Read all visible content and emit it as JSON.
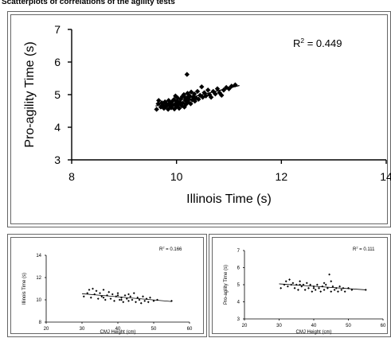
{
  "caption": "Scatterplots of correlations of the agility tests",
  "chart_data": [
    {
      "type": "scatter",
      "title": "",
      "xlabel": "Illinois Time (s)",
      "ylabel": "Pro-agility Time (s)",
      "xlim": [
        8,
        14
      ],
      "ylim": [
        3,
        7
      ],
      "xticks": [
        "8",
        "10",
        "12",
        "14"
      ],
      "yticks": [
        "3",
        "4",
        "5",
        "6",
        "7"
      ],
      "annotation": "R",
      "annotation_sup": "2",
      "annotation_value": " = 0.449",
      "trendline": {
        "x": [
          9.6,
          11.2
        ],
        "y": [
          4.65,
          5.28
        ]
      },
      "points": [
        [
          9.62,
          4.55
        ],
        [
          9.65,
          4.72
        ],
        [
          9.66,
          4.82
        ],
        [
          9.7,
          4.62
        ],
        [
          9.72,
          4.75
        ],
        [
          9.74,
          4.68
        ],
        [
          9.76,
          4.58
        ],
        [
          9.78,
          4.78
        ],
        [
          9.8,
          4.64
        ],
        [
          9.82,
          4.7
        ],
        [
          9.84,
          4.55
        ],
        [
          9.85,
          4.82
        ],
        [
          9.87,
          4.66
        ],
        [
          9.88,
          4.74
        ],
        [
          9.9,
          4.6
        ],
        [
          9.91,
          4.78
        ],
        [
          9.93,
          4.68
        ],
        [
          9.95,
          4.85
        ],
        [
          9.96,
          4.56
        ],
        [
          9.98,
          4.72
        ],
        [
          10.0,
          4.64
        ],
        [
          10.01,
          4.8
        ],
        [
          10.02,
          4.9
        ],
        [
          10.04,
          4.7
        ],
        [
          10.05,
          4.58
        ],
        [
          10.07,
          4.76
        ],
        [
          10.08,
          4.86
        ],
        [
          10.1,
          4.66
        ],
        [
          10.11,
          4.94
        ],
        [
          10.12,
          4.74
        ],
        [
          10.14,
          5.0
        ],
        [
          10.15,
          4.62
        ],
        [
          10.17,
          4.82
        ],
        [
          10.18,
          4.7
        ],
        [
          10.2,
          4.9
        ],
        [
          10.21,
          5.04
        ],
        [
          10.22,
          4.78
        ],
        [
          10.24,
          4.86
        ],
        [
          10.25,
          4.96
        ],
        [
          10.27,
          4.72
        ],
        [
          10.28,
          5.08
        ],
        [
          10.3,
          4.84
        ],
        [
          10.32,
          4.94
        ],
        [
          10.34,
          5.02
        ],
        [
          10.35,
          4.8
        ],
        [
          10.37,
          4.9
        ],
        [
          10.4,
          5.1
        ],
        [
          10.42,
          4.86
        ],
        [
          10.45,
          4.98
        ],
        [
          10.48,
          5.24
        ],
        [
          10.5,
          4.92
        ],
        [
          10.53,
          5.06
        ],
        [
          10.56,
          4.96
        ],
        [
          10.6,
          5.14
        ],
        [
          10.63,
          5.0
        ],
        [
          10.66,
          4.92
        ],
        [
          10.7,
          5.1
        ],
        [
          10.74,
          5.02
        ],
        [
          10.78,
          5.18
        ],
        [
          10.82,
          5.06
        ],
        [
          10.86,
          4.98
        ],
        [
          10.9,
          5.14
        ],
        [
          10.95,
          5.22
        ],
        [
          11.0,
          5.18
        ],
        [
          11.05,
          5.26
        ],
        [
          11.12,
          5.3
        ],
        [
          10.2,
          5.62
        ],
        [
          9.98,
          4.96
        ],
        [
          10.16,
          4.92
        ],
        [
          10.36,
          4.88
        ]
      ]
    },
    {
      "type": "scatter",
      "title": "",
      "xlabel": "CMJ Height (cm)",
      "ylabel": "Illinois Time (s)",
      "xlim": [
        20,
        60
      ],
      "ylim": [
        8,
        14
      ],
      "xticks": [
        "20",
        "30",
        "40",
        "50",
        "60"
      ],
      "yticks": [
        "8",
        "10",
        "12",
        "14"
      ],
      "annotation": "R",
      "annotation_sup": "2",
      "annotation_value": " = 0.166",
      "trendline": {
        "x": [
          30,
          55
        ],
        "y": [
          10.55,
          9.85
        ]
      },
      "points": [
        [
          30.5,
          10.3
        ],
        [
          31.5,
          10.6
        ],
        [
          32,
          10.9
        ],
        [
          32.5,
          10.2
        ],
        [
          33,
          11.0
        ],
        [
          33.5,
          10.5
        ],
        [
          34,
          10.8
        ],
        [
          34.5,
          10.1
        ],
        [
          35,
          10.6
        ],
        [
          35.5,
          10.3
        ],
        [
          36,
          10.9
        ],
        [
          36.5,
          10.0
        ],
        [
          37,
          10.4
        ],
        [
          37.5,
          10.7
        ],
        [
          38,
          10.1
        ],
        [
          38.5,
          10.5
        ],
        [
          39,
          9.9
        ],
        [
          39.5,
          10.3
        ],
        [
          40,
          10.6
        ],
        [
          40.5,
          10.0
        ],
        [
          41,
          10.2
        ],
        [
          41.5,
          9.8
        ],
        [
          42,
          10.4
        ],
        [
          42.5,
          10.1
        ],
        [
          43,
          9.9
        ],
        [
          43.5,
          10.3
        ],
        [
          44,
          10.0
        ],
        [
          44.5,
          10.6
        ],
        [
          45,
          9.8
        ],
        [
          45.5,
          10.2
        ],
        [
          46,
          10.0
        ],
        [
          46.5,
          9.7
        ],
        [
          47,
          10.3
        ],
        [
          47.5,
          9.9
        ],
        [
          48,
          10.1
        ],
        [
          48.5,
          9.8
        ],
        [
          49,
          10.2
        ],
        [
          50,
          9.9
        ],
        [
          51,
          10.0
        ],
        [
          55,
          9.9
        ],
        [
          36,
          10.2
        ],
        [
          40,
          10.4
        ],
        [
          43,
          10.5
        ],
        [
          41,
          10.0
        ]
      ]
    },
    {
      "type": "scatter",
      "title": "",
      "xlabel": "CMJ Height (cm)",
      "ylabel": "Pro-agility Time (s)",
      "xlim": [
        20,
        60
      ],
      "ylim": [
        3,
        7
      ],
      "xticks": [
        "20",
        "30",
        "40",
        "50",
        "60"
      ],
      "yticks": [
        "3",
        "4",
        "5",
        "6",
        "7"
      ],
      "annotation": "R",
      "annotation_sup": "2",
      "annotation_value": " = 0.111",
      "trendline": {
        "x": [
          30,
          55
        ],
        "y": [
          5.05,
          4.7
        ]
      },
      "points": [
        [
          30.5,
          4.8
        ],
        [
          31.5,
          5.0
        ],
        [
          32,
          5.2
        ],
        [
          32.5,
          4.9
        ],
        [
          33,
          5.3
        ],
        [
          33.5,
          5.0
        ],
        [
          34,
          5.1
        ],
        [
          34.5,
          4.8
        ],
        [
          35,
          5.0
        ],
        [
          35.5,
          4.7
        ],
        [
          36,
          5.2
        ],
        [
          36.5,
          4.9
        ],
        [
          37,
          5.0
        ],
        [
          37.5,
          4.7
        ],
        [
          38,
          5.1
        ],
        [
          38.5,
          4.8
        ],
        [
          39,
          5.0
        ],
        [
          39.5,
          4.6
        ],
        [
          40,
          4.9
        ],
        [
          40.5,
          4.7
        ],
        [
          41,
          5.0
        ],
        [
          41.5,
          4.8
        ],
        [
          42,
          4.6
        ],
        [
          42.5,
          4.9
        ],
        [
          43,
          4.7
        ],
        [
          43.5,
          5.0
        ],
        [
          44,
          4.8
        ],
        [
          44.5,
          5.6
        ],
        [
          45,
          4.6
        ],
        [
          45.5,
          4.9
        ],
        [
          46,
          4.7
        ],
        [
          46.5,
          4.8
        ],
        [
          47,
          4.6
        ],
        [
          47.5,
          4.9
        ],
        [
          48,
          4.7
        ],
        [
          48.5,
          4.8
        ],
        [
          49,
          4.6
        ],
        [
          50,
          4.8
        ],
        [
          51,
          4.7
        ],
        [
          55,
          4.7
        ],
        [
          36,
          5.0
        ],
        [
          40,
          4.8
        ],
        [
          43,
          5.1
        ],
        [
          45,
          5.2
        ]
      ]
    }
  ]
}
